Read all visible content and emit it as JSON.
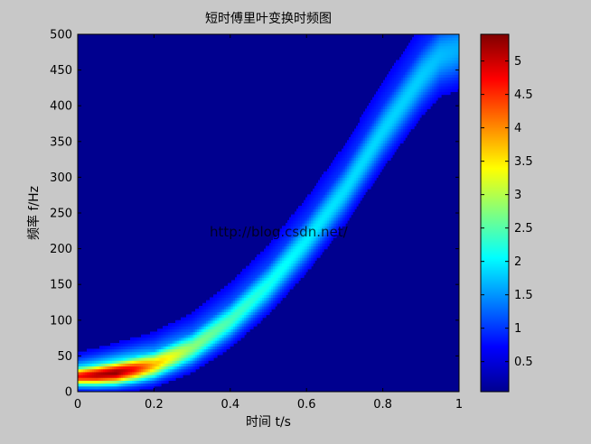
{
  "chart_data": [
    {
      "type": "heatmap",
      "title": "短时傅里叶变换时频图",
      "xlabel": "时间 t/s",
      "ylabel": "频率 f/Hz",
      "xlim": [
        0,
        1
      ],
      "ylim": [
        0,
        500
      ],
      "xticks": [
        "0",
        "0.2",
        "0.4",
        "0.6",
        "0.8",
        "1"
      ],
      "yticks": [
        "0",
        "50",
        "100",
        "150",
        "200",
        "250",
        "300",
        "350",
        "400",
        "450",
        "500"
      ],
      "colormap": "jet",
      "grid": false,
      "ridge": {
        "description_free": true,
        "t": [
          0.0,
          0.05,
          0.1,
          0.15,
          0.2,
          0.3,
          0.4,
          0.5,
          0.6,
          0.7,
          0.8,
          0.9,
          0.95,
          1.0
        ],
        "freq": [
          22,
          24,
          27,
          32,
          38,
          62,
          100,
          150,
          212,
          282,
          365,
          440,
          470,
          480
        ],
        "magnitude": [
          4.6,
          5.1,
          5.3,
          4.6,
          3.6,
          2.5,
          2.1,
          1.8,
          1.6,
          1.5,
          1.45,
          1.4,
          1.3,
          1.2
        ]
      }
    },
    {
      "type": "colorbar",
      "range": [
        0.05,
        5.4
      ],
      "ticks": [
        "0.5",
        "1",
        "1.5",
        "2",
        "2.5",
        "3",
        "3.5",
        "4",
        "4.5",
        "5"
      ]
    }
  ],
  "watermark": "http://blog.csdn.net/"
}
